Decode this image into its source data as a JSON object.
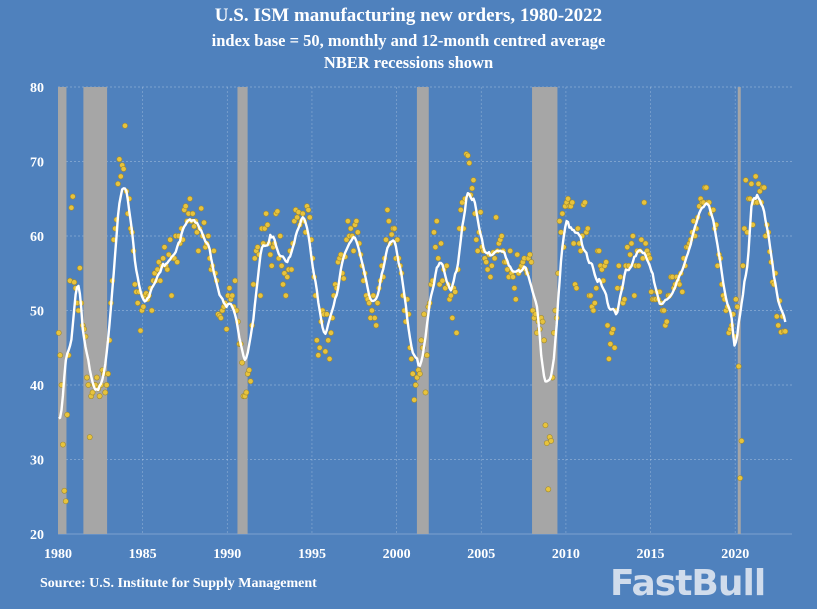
{
  "header": {
    "title": "U.S. ISM manufacturing new orders, 1980-2022",
    "subtitle": "index base = 50, monthly and 12-month centred average",
    "subtitle2": "NBER recessions shown"
  },
  "source": "Source: U.S. Institute for Supply Management",
  "watermark": "FastBull",
  "colors": {
    "background": "#4f81bd",
    "recession": "#a6a6a6",
    "points": "#e8c33c",
    "average_line": "#ffffff"
  },
  "chart_data": {
    "type": "scatter",
    "title": "U.S. ISM manufacturing new orders, 1980-2022",
    "xlabel": "",
    "ylabel": "",
    "ylim": [
      20,
      80
    ],
    "yticks": [
      "20",
      "30",
      "40",
      "50",
      "60",
      "70",
      "80"
    ],
    "xticks": [
      "1980",
      "1985",
      "1990",
      "1995",
      "2000",
      "2005",
      "2010",
      "2015",
      "2020"
    ],
    "grid": true,
    "start_year": 1980,
    "frequency": "monthly",
    "series_monthly_by_year": {
      "1980": [
        47,
        44,
        40,
        32,
        25.8,
        24.4,
        36,
        44,
        54,
        63.8,
        65.3,
        53.8
      ],
      "1981": [
        53,
        51,
        50,
        55.7,
        51,
        48,
        47.5,
        46.5,
        41,
        40,
        33,
        38.5
      ],
      "1982": [
        39,
        40,
        40,
        41,
        39.5,
        38.5,
        40,
        42,
        41.5,
        39,
        40,
        41.5
      ],
      "1983": [
        46,
        51,
        54,
        59.5,
        61,
        62.2,
        67,
        70.3,
        68,
        69.5,
        69,
        74.8
      ],
      "1984": [
        66,
        63,
        65,
        61,
        60.5,
        58,
        53.5,
        52.5,
        51,
        52.5,
        47.3,
        50
      ],
      "1985": [
        50.5,
        52,
        52.3,
        51.5,
        52,
        53,
        50,
        54,
        55,
        54,
        55.5,
        56.5
      ],
      "1986": [
        54,
        56,
        57,
        58.5,
        56,
        55.5,
        57.5,
        59.5,
        52,
        57,
        57,
        60
      ],
      "1987": [
        56.5,
        60,
        59,
        61,
        59.5,
        63.5,
        64,
        62,
        63,
        65,
        62,
        63
      ],
      "1988": [
        61.3,
        62,
        60.5,
        58,
        61,
        63.7,
        60,
        61.8,
        58.5,
        59,
        60,
        57
      ],
      "1989": [
        55.5,
        56,
        58,
        55,
        54,
        49.5,
        49.3,
        49,
        50,
        50.5,
        51,
        47.5
      ],
      "1990": [
        52,
        53,
        51.5,
        52,
        50.5,
        54,
        50,
        48.5,
        45.5,
        45.5,
        43,
        38.5
      ],
      "1991": [
        38.5,
        39,
        41.5,
        42,
        40.5,
        48,
        53.5,
        57,
        58,
        58.5,
        57.5,
        52
      ],
      "1992": [
        61,
        59,
        61,
        63,
        61.5,
        59,
        57.5,
        56,
        58.5,
        59,
        63,
        63.3
      ],
      "1993": [
        57,
        60,
        56,
        53.5,
        55,
        52,
        54.5,
        55.5,
        58,
        55.5,
        59,
        62
      ],
      "1994": [
        63.5,
        62.5,
        63.2,
        61.5,
        62,
        63,
        62,
        60.5,
        64,
        63.5,
        62.5,
        59.5
      ],
      "1995": [
        57,
        54.5,
        52,
        46,
        44,
        45,
        48.5,
        50,
        49.5,
        44.5,
        49.5,
        46
      ],
      "1996": [
        43.5,
        47,
        49,
        52,
        53.5,
        53,
        56.5,
        57,
        57.5,
        55,
        54.3,
        57.2
      ],
      "1997": [
        59.5,
        62,
        60,
        61,
        60,
        58,
        61.5,
        62,
        60.5,
        59,
        57.5,
        56
      ],
      "1998": [
        54,
        55,
        52,
        51.5,
        51,
        49,
        50,
        52,
        49,
        48,
        51,
        53
      ],
      "1999": [
        54,
        56,
        54.5,
        57,
        59.5,
        63.5,
        62,
        59,
        60.2,
        61,
        61,
        57
      ],
      "2000": [
        59.5,
        57,
        56,
        55,
        52,
        50,
        48.5,
        51.5,
        49.5,
        45,
        43.5,
        41.5
      ],
      "2001": [
        38,
        40,
        41,
        42,
        41.5,
        46,
        45,
        49.5,
        39,
        44,
        50.5,
        51
      ],
      "2002": [
        53.5,
        54,
        60.5,
        58.5,
        62,
        57,
        53.5,
        59,
        54,
        55.5,
        53,
        56
      ],
      "2003": [
        53.5,
        51.5,
        52,
        49,
        53,
        52.5,
        47,
        55.5,
        61,
        63.5,
        64.5,
        61
      ],
      "2004": [
        65,
        71,
        70.8,
        69.8,
        65.5,
        66.4,
        67.5,
        63,
        59.5,
        58,
        60.5,
        63.2
      ],
      "2005": [
        58.5,
        58,
        57,
        56.5,
        55.5,
        57.5,
        54.5,
        56,
        57.8,
        57,
        62.5,
        58
      ],
      "2006": [
        59,
        59.5,
        60,
        58,
        56.5,
        56.5,
        55.5,
        54.5,
        58,
        55,
        54.5,
        53
      ],
      "2007": [
        51.5,
        57.5,
        55,
        55.5,
        56,
        56.5,
        57,
        55.5,
        55,
        57,
        57.5,
        56.5
      ],
      "2008": [
        50,
        49,
        49.5,
        47,
        48.5,
        47.5,
        49,
        48.5,
        46,
        34.6,
        32.2,
        26
      ],
      "2009": [
        33,
        32.5,
        41,
        47,
        50,
        49,
        55,
        62,
        60.5,
        63,
        58.5,
        64
      ],
      "2010": [
        64.5,
        65,
        64,
        64,
        64.5,
        59,
        53.5,
        53,
        61,
        59,
        58,
        60
      ],
      "2011": [
        64.2,
        64.5,
        60.5,
        61,
        52,
        52,
        50.5,
        50,
        51,
        53,
        58,
        58
      ],
      "2012": [
        56,
        55.5,
        54,
        56,
        56.5,
        48,
        43.5,
        45.5,
        47,
        47.5,
        45,
        50
      ],
      "2013": [
        53,
        56,
        54.5,
        53,
        51,
        51.5,
        56,
        58.5,
        56,
        57.5,
        59,
        60
      ],
      "2014": [
        52,
        56,
        58,
        56,
        58,
        59.5,
        57,
        64.5,
        59,
        58,
        57.5,
        57
      ],
      "2015": [
        52.5,
        51.5,
        51.5,
        51.5,
        52.5,
        51.5,
        52.5,
        51,
        50,
        50,
        48,
        48.5
      ],
      "2016": [
        52,
        52,
        54.5,
        54.5,
        53,
        53.5,
        54.5,
        54,
        53.5,
        55,
        52.5,
        57
      ],
      "2017": [
        56,
        58.5,
        58.5,
        59,
        59.5,
        60.5,
        62,
        60,
        61,
        62.5,
        64,
        65
      ],
      "2018": [
        64.5,
        64.5,
        66.5,
        66.5,
        64.5,
        64.5,
        63,
        63.5,
        63.5,
        61,
        61.5,
        56
      ],
      "2019": [
        57.5,
        57,
        53.5,
        52,
        51.5,
        50,
        50.5,
        47,
        47.5,
        48,
        49.5,
        46.5
      ],
      "2020": [
        51.5,
        50.5,
        42.5,
        27.5,
        32.5,
        56,
        61,
        67.5,
        60.5,
        65,
        65,
        67
      ],
      "2021": [
        61.5,
        64.5,
        68,
        64.5,
        67,
        66,
        64.5,
        66.5,
        66.5,
        60,
        61.5,
        60.5
      ],
      "2022": [
        57.9,
        56.5,
        53.8,
        53.5,
        55,
        49.2,
        48,
        51.3,
        47.1,
        49.2,
        47.2,
        47.2
      ]
    },
    "average": "12-month centred average",
    "recessions": [
      [
        1980.0,
        1980.5
      ],
      [
        1981.5,
        1982.9
      ],
      [
        1990.6,
        1991.2
      ],
      [
        2001.2,
        2001.9
      ],
      [
        2008.0,
        2009.5
      ],
      [
        2020.15,
        2020.3
      ]
    ]
  }
}
